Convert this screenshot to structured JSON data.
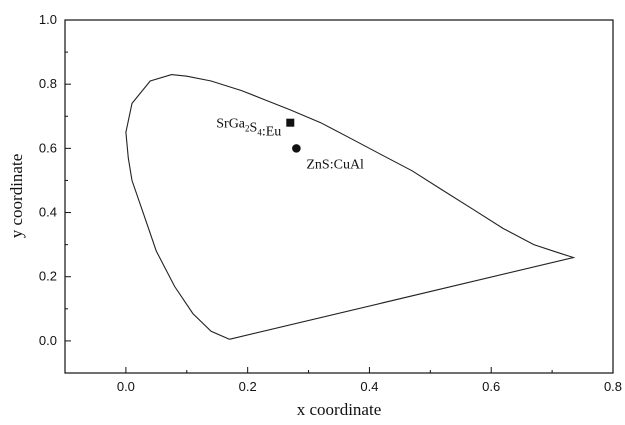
{
  "chart_data": {
    "type": "scatter",
    "title": "",
    "xlabel": "x coordinate",
    "ylabel": "y coordinate",
    "xlim": [
      -0.1,
      0.8
    ],
    "ylim": [
      -0.1,
      1.0
    ],
    "xticks": [
      0.0,
      0.2,
      0.4,
      0.6,
      0.8
    ],
    "yticks": [
      0.0,
      0.2,
      0.4,
      0.6,
      0.8,
      1.0
    ],
    "xtick_labels": [
      "0.0",
      "0.2",
      "0.4",
      "0.6",
      "0.8"
    ],
    "ytick_labels": [
      "0.0",
      "0.2",
      "0.4",
      "0.6",
      "0.8",
      "1.0"
    ],
    "grid": false,
    "legend": "none",
    "boundary": {
      "x": [
        0.17,
        0.14,
        0.11,
        0.08,
        0.05,
        0.03,
        0.01,
        0.004,
        0.0,
        0.01,
        0.04,
        0.075,
        0.1,
        0.14,
        0.19,
        0.23,
        0.27,
        0.32,
        0.37,
        0.42,
        0.47,
        0.52,
        0.57,
        0.62,
        0.67,
        0.71,
        0.735,
        0.17
      ],
      "y": [
        0.005,
        0.03,
        0.085,
        0.17,
        0.28,
        0.39,
        0.5,
        0.57,
        0.65,
        0.74,
        0.81,
        0.83,
        0.825,
        0.81,
        0.78,
        0.75,
        0.72,
        0.68,
        0.63,
        0.58,
        0.53,
        0.47,
        0.41,
        0.35,
        0.3,
        0.275,
        0.26,
        0.005
      ]
    },
    "points": [
      {
        "name": "SrGa2S4:Eu",
        "label_main": "SrGa",
        "label_sub1": "2",
        "label_mid": "S",
        "label_sub2": "4",
        "label_end": ":Eu",
        "x": 0.27,
        "y": 0.68,
        "marker": "square"
      },
      {
        "name": "ZnS:CuAl",
        "label": "ZnS:CuAl",
        "x": 0.28,
        "y": 0.6,
        "marker": "circle"
      }
    ]
  }
}
